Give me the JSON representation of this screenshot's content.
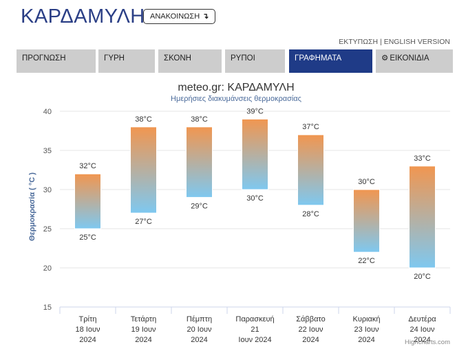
{
  "header": {
    "title": "ΚΑΡΔΑΜΥΛΗ",
    "announce_label": "ΑΝΑΚΟΙΝΩΣΗ",
    "announce_arrow": "↴"
  },
  "top_links": {
    "print": "ΕΚΤΥΠΩΣΗ",
    "separator": "|",
    "english": "ENGLISH VERSION"
  },
  "tabs": [
    {
      "label": "ΠΡΟΓΝΩΣΗ",
      "active": false
    },
    {
      "label": "ΓΥΡΗ",
      "active": false
    },
    {
      "label": "ΣΚΟΝΗ",
      "active": false
    },
    {
      "label": "ΡΥΠΟΙ",
      "active": false
    },
    {
      "label": "ΓΡΑΦΗΜΑΤΑ",
      "active": true
    },
    {
      "label": "ΕΙΚΟΝΙΔΙΑ",
      "active": false,
      "icon": "gear-icon"
    }
  ],
  "chart_data": {
    "type": "columnrange",
    "title": "meteo.gr: ΚΑΡΔΑΜΥΛΗ",
    "subtitle": "Ημερήσιες διακυμάνσεις θερμοκρασίας",
    "ylabel": "Θερμοκρασία ( °C )",
    "ylim": [
      15,
      40
    ],
    "yticks": [
      15,
      20,
      25,
      30,
      35,
      40
    ],
    "grid": true,
    "unit": "°C",
    "categories": [
      [
        "Τρίτη",
        "18 Ιουν",
        "2024"
      ],
      [
        "Τετάρτη",
        "19 Ιουν",
        "2024"
      ],
      [
        "Πέμπτη",
        "20 Ιουν",
        "2024"
      ],
      [
        "Παρασκευή",
        "21",
        "Ιουν 2024"
      ],
      [
        "Σάββατο",
        "22 Ιουν",
        "2024"
      ],
      [
        "Κυριακή",
        "23 Ιουν",
        "2024"
      ],
      [
        "Δευτέρα",
        "24 Ιουν",
        "2024"
      ]
    ],
    "low": [
      25,
      27,
      29,
      30,
      28,
      22,
      20
    ],
    "high": [
      32,
      38,
      38,
      39,
      37,
      30,
      33
    ],
    "colors": {
      "top": "#f19650",
      "bottom": "#7ec8f0"
    }
  },
  "credits": "Highcharts.com"
}
